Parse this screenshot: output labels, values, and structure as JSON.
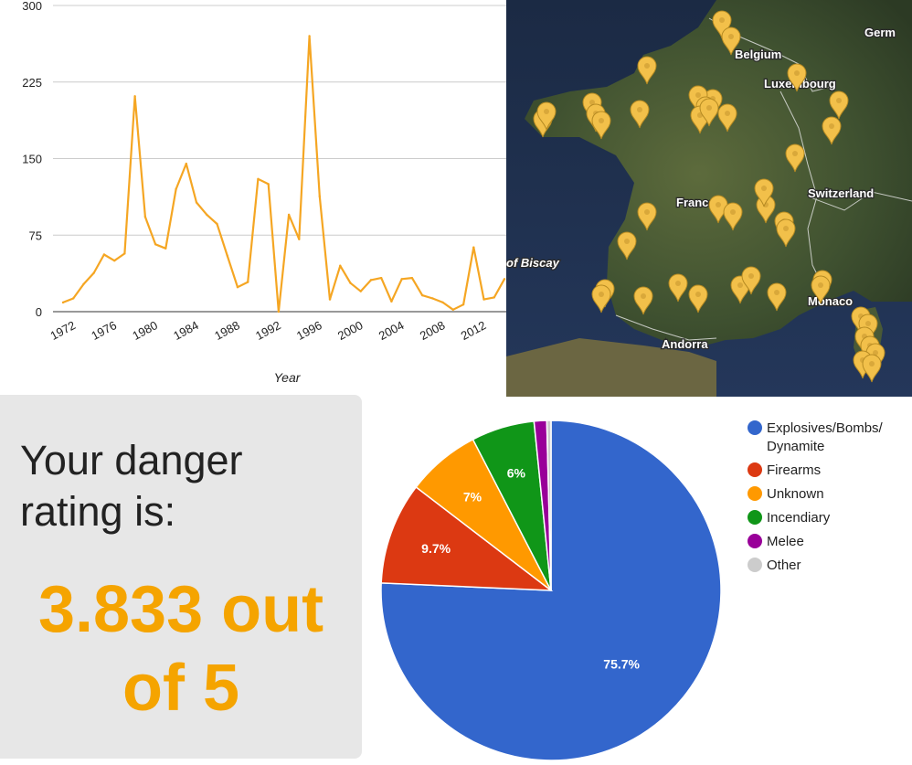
{
  "chart_data": [
    {
      "type": "line",
      "xlabel": "Year",
      "ylabel": "",
      "ylim": [
        0,
        300
      ],
      "yticks": [
        "0",
        "75",
        "150",
        "225",
        "300"
      ],
      "xticks": [
        "1972",
        "1976",
        "1980",
        "1984",
        "1988",
        "1992",
        "1996",
        "2000",
        "2004",
        "2008",
        "2012"
      ],
      "grid": "horizontal",
      "color": "#f5a623",
      "x": [
        1972,
        1973,
        1974,
        1975,
        1976,
        1977,
        1978,
        1979,
        1980,
        1981,
        1982,
        1983,
        1984,
        1985,
        1986,
        1987,
        1988,
        1989,
        1990,
        1991,
        1992,
        1993,
        1994,
        1995,
        1996,
        1997,
        1998,
        1999,
        2000,
        2001,
        2002,
        2003,
        2004,
        2005,
        2006,
        2007,
        2008,
        2009,
        2010,
        2011,
        2012,
        2013,
        2014,
        2015
      ],
      "y": [
        9,
        13,
        27,
        38,
        56,
        50,
        57,
        211,
        93,
        66,
        62,
        120,
        145,
        107,
        95,
        86,
        55,
        24,
        29,
        130,
        125,
        0,
        95,
        71,
        270,
        113,
        12,
        45,
        28,
        20,
        31,
        33,
        10,
        32,
        33,
        16,
        13,
        9,
        2,
        7,
        63,
        12,
        14,
        32
      ]
    },
    {
      "type": "pie",
      "slices": [
        {
          "label": "Explosives/Bombs/Dynamite",
          "legend_lines": [
            "Explosives/Bombs/",
            "Dynamite"
          ],
          "value": 75.7,
          "display": "75.7%",
          "color": "#3366cc"
        },
        {
          "label": "Firearms",
          "legend_lines": [
            "Firearms"
          ],
          "value": 9.7,
          "display": "9.7%",
          "color": "#dc3912"
        },
        {
          "label": "Unknown",
          "legend_lines": [
            "Unknown"
          ],
          "value": 7.0,
          "display": "7%",
          "color": "#ff9900"
        },
        {
          "label": "Incendiary",
          "legend_lines": [
            "Incendiary"
          ],
          "value": 6.0,
          "display": "6%",
          "color": "#109618"
        },
        {
          "label": "Melee",
          "legend_lines": [
            "Melee"
          ],
          "value": 1.2,
          "display": "",
          "color": "#990099"
        },
        {
          "label": "Other",
          "legend_lines": [
            "Other"
          ],
          "value": 0.4,
          "display": "",
          "color": "#cccccc"
        }
      ],
      "legend_position": "right"
    }
  ],
  "rating": {
    "title_line1": "Your danger",
    "title_line2": "rating is:",
    "value_line1": "3.833 out",
    "value_line2": "of 5",
    "value_color": "#f5a400"
  },
  "map": {
    "labels": [
      "Germ",
      "Belgium",
      "Luxembourg",
      "Switzerland",
      "France",
      "of Biscay",
      "Monaco",
      "Andorra"
    ],
    "marker_icon": "map-pin-icon",
    "marker_color": "#f2c04a"
  }
}
